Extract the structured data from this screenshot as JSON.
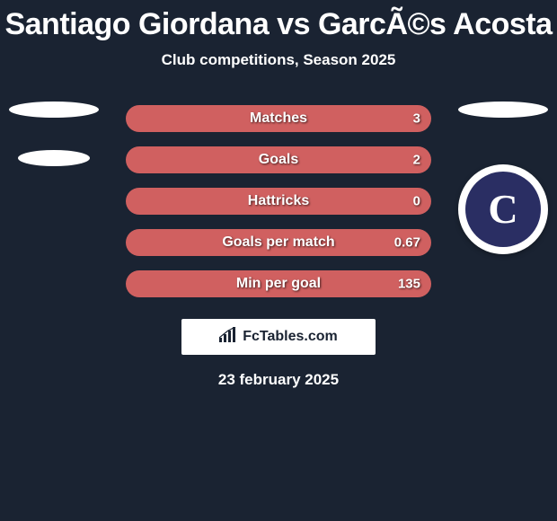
{
  "title": "Santiago Giordana vs GarcÃ©s Acosta",
  "title_fontsize": 34,
  "title_color": "#ffffff",
  "subtitle": "Club competitions, Season 2025",
  "subtitle_fontsize": 17,
  "subtitle_color": "#ffffff",
  "background_color": "#1a2332",
  "avatar_placeholder_color": "#ffffff",
  "badge": {
    "circle_bg": "#ffffff",
    "inner_bg": "#2a2e63",
    "letter": "C",
    "letter_color": "#ffffff"
  },
  "bars": {
    "height": 30,
    "gap": 16,
    "border_radius": 15,
    "fill_color": "#d06060",
    "label_fontsize": 16,
    "value_fontsize": 15,
    "text_color": "#ffffff",
    "rows": [
      {
        "label": "Matches",
        "left": "",
        "right": "3"
      },
      {
        "label": "Goals",
        "left": "",
        "right": "2"
      },
      {
        "label": "Hattricks",
        "left": "",
        "right": "0"
      },
      {
        "label": "Goals per match",
        "left": "",
        "right": "0.67"
      },
      {
        "label": "Min per goal",
        "left": "",
        "right": "135"
      }
    ]
  },
  "branding": {
    "text": "FcTables.com",
    "text_color": "#1a2332",
    "bg": "#ffffff",
    "icon_color": "#1a2332"
  },
  "date": "23 february 2025",
  "date_fontsize": 17
}
